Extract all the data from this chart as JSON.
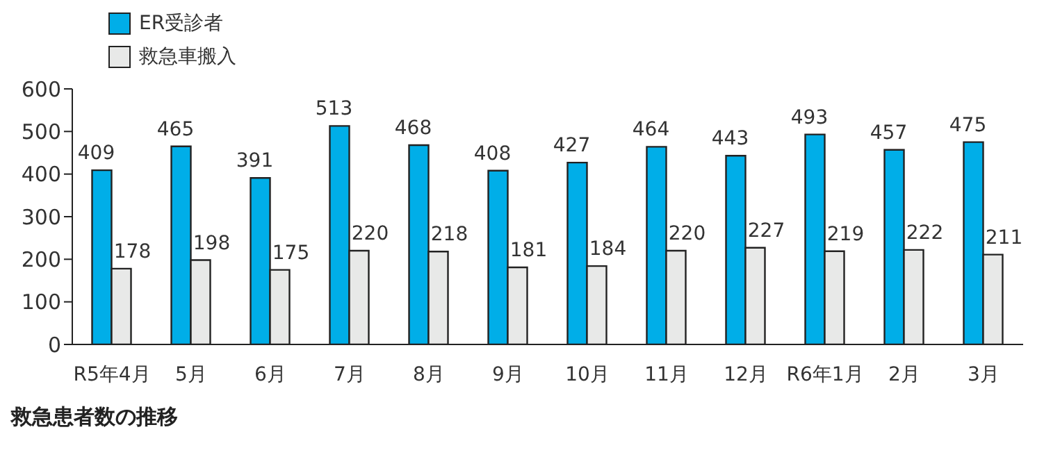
{
  "chart_data": {
    "type": "bar",
    "title": "救急患者数の推移",
    "categories": [
      "R5年4月",
      "5月",
      "6月",
      "7月",
      "8月",
      "9月",
      "10月",
      "11月",
      "12月",
      "R6年1月",
      "2月",
      "3月"
    ],
    "series": [
      {
        "name": "ER受診者",
        "color": "#00aee8",
        "values": [
          409,
          465,
          391,
          513,
          468,
          408,
          427,
          464,
          443,
          493,
          457,
          475
        ]
      },
      {
        "name": "救急車搬入",
        "color": "#e8e9e8",
        "values": [
          178,
          198,
          175,
          220,
          218,
          181,
          184,
          220,
          227,
          219,
          222,
          211
        ]
      }
    ],
    "ylim": [
      0,
      600
    ],
    "yticks": [
      0,
      100,
      200,
      300,
      400,
      500,
      600
    ],
    "grid": false,
    "legend": "top left",
    "data_labels": true
  }
}
